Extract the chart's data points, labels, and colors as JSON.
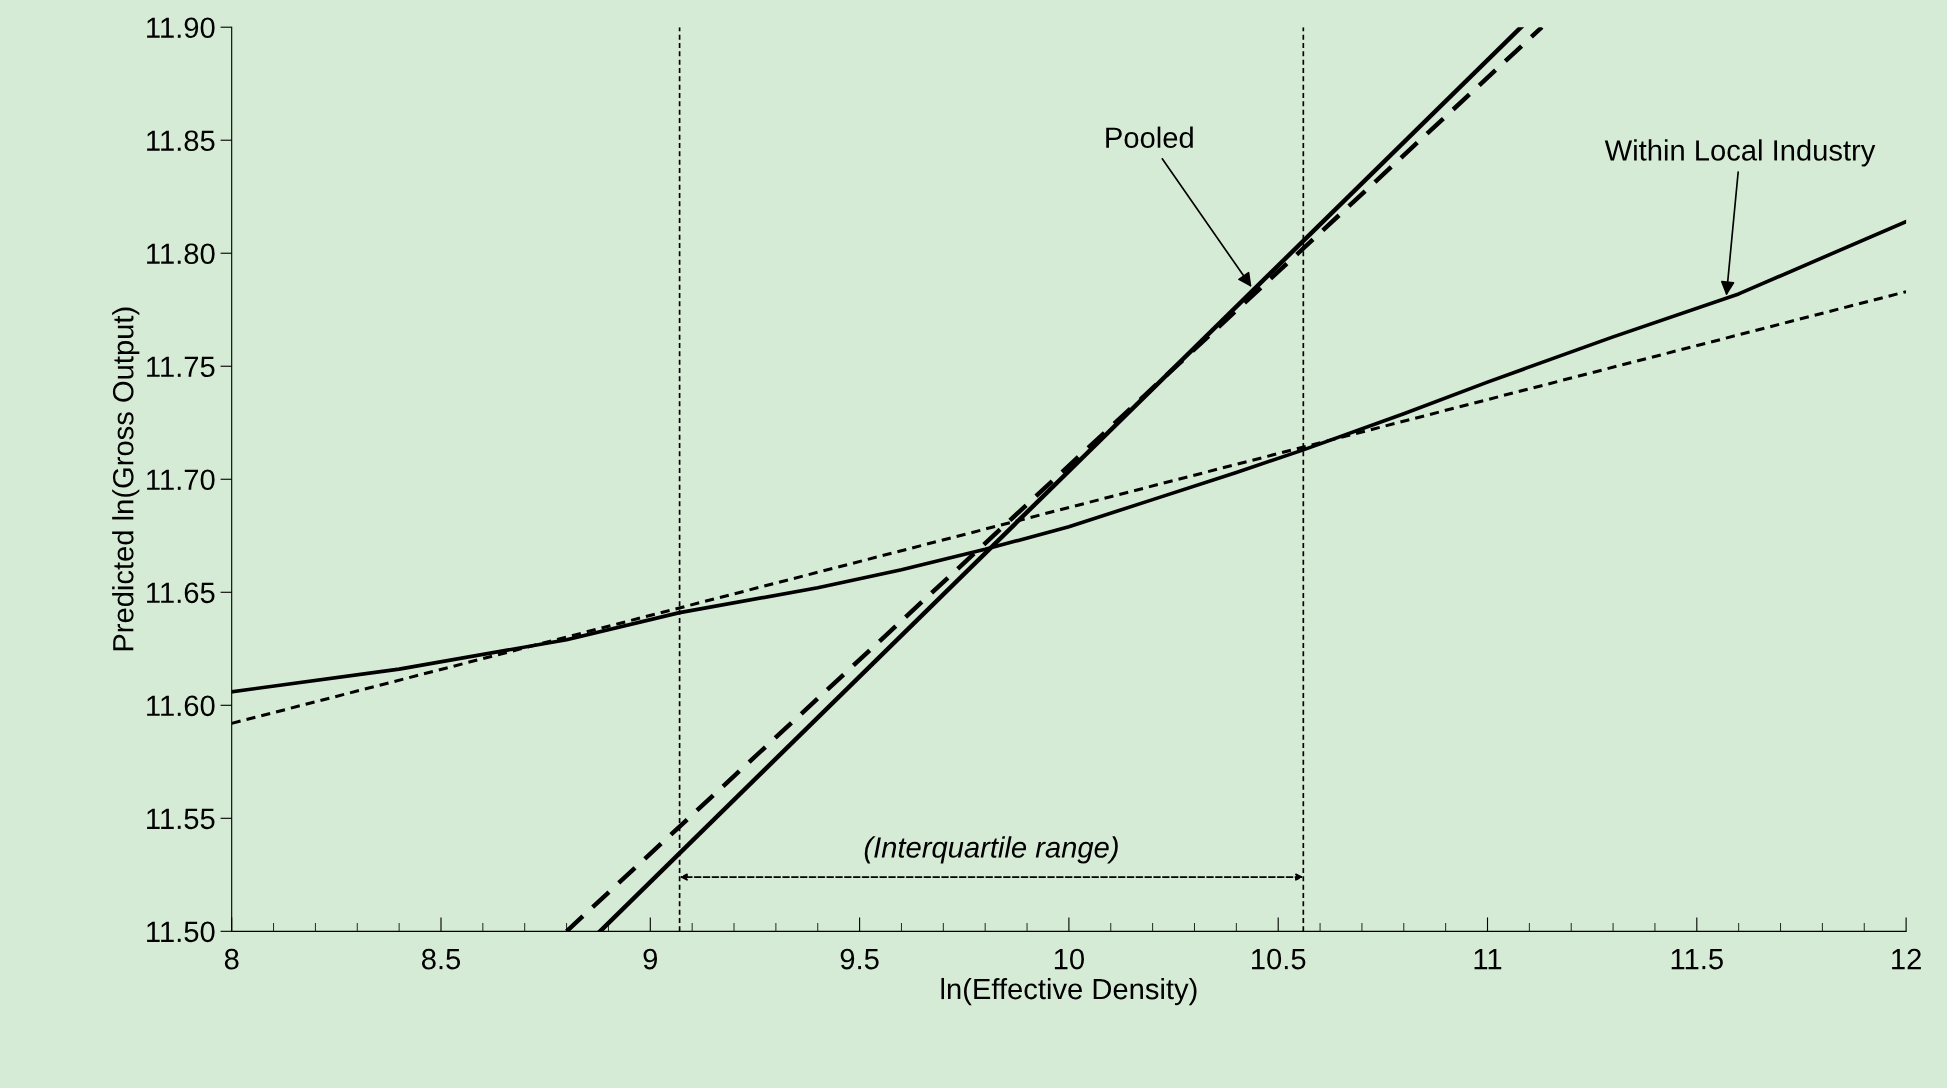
{
  "chart_data": {
    "type": "line",
    "xlabel": "ln(Effective Density)",
    "ylabel": "Predicted ln(Gross Output)",
    "xlim": [
      8,
      12
    ],
    "ylim": [
      11.5,
      11.9
    ],
    "xticks": [
      8,
      8.5,
      9,
      9.5,
      10,
      10.5,
      11,
      11.5,
      12
    ],
    "yticks": [
      {
        "value": 11.5,
        "label": "11.50"
      },
      {
        "value": 11.55,
        "label": "11.55"
      },
      {
        "value": 11.6,
        "label": "11.60"
      },
      {
        "value": 11.65,
        "label": "11.65"
      },
      {
        "value": 11.7,
        "label": "11.70"
      },
      {
        "value": 11.75,
        "label": "11.75"
      },
      {
        "value": 11.8,
        "label": "11.80"
      },
      {
        "value": 11.85,
        "label": "11.85"
      },
      {
        "value": 11.9,
        "label": "11.90"
      }
    ],
    "grid": false,
    "legend": false,
    "marker": "none",
    "series": [
      {
        "color": "#000000",
        "line_style": "solid",
        "x": [
          8.88,
          11.08
        ],
        "values": [
          11.5,
          11.9
        ]
      },
      {
        "color": "#000000",
        "line_style": "dashed",
        "x": [
          8.8,
          11.13
        ],
        "values": [
          11.5,
          11.9
        ]
      },
      {
        "color": "#000000",
        "line_style": "solid",
        "x": [
          8,
          8.4,
          8.8,
          9.07,
          9.4,
          9.6,
          9.8,
          10.0,
          10.2,
          10.4,
          10.56,
          10.8,
          11,
          11.3,
          11.6,
          12
        ],
        "values": [
          11.606,
          11.616,
          11.629,
          11.641,
          11.652,
          11.66,
          11.669,
          11.679,
          11.691,
          11.703,
          11.713,
          11.729,
          11.743,
          11.763,
          11.782,
          11.814
        ]
      },
      {
        "color": "#000000",
        "line_style": "dotted",
        "x": [
          8,
          12
        ],
        "values": [
          11.592,
          11.783
        ]
      }
    ],
    "ref_lines": [
      {
        "axis": "x",
        "value": 9.07,
        "color": "#000000",
        "line_style": "dotted"
      },
      {
        "axis": "x",
        "value": 10.56,
        "color": "#000000",
        "line_style": "dotted"
      }
    ],
    "annotations": [
      {
        "text": "Pooled",
        "x": 10.44,
        "y": 11.784
      },
      {
        "text": "Within Local Industry",
        "x": 11.57,
        "y": 11.78
      },
      "(Interquartile range)"
    ]
  }
}
